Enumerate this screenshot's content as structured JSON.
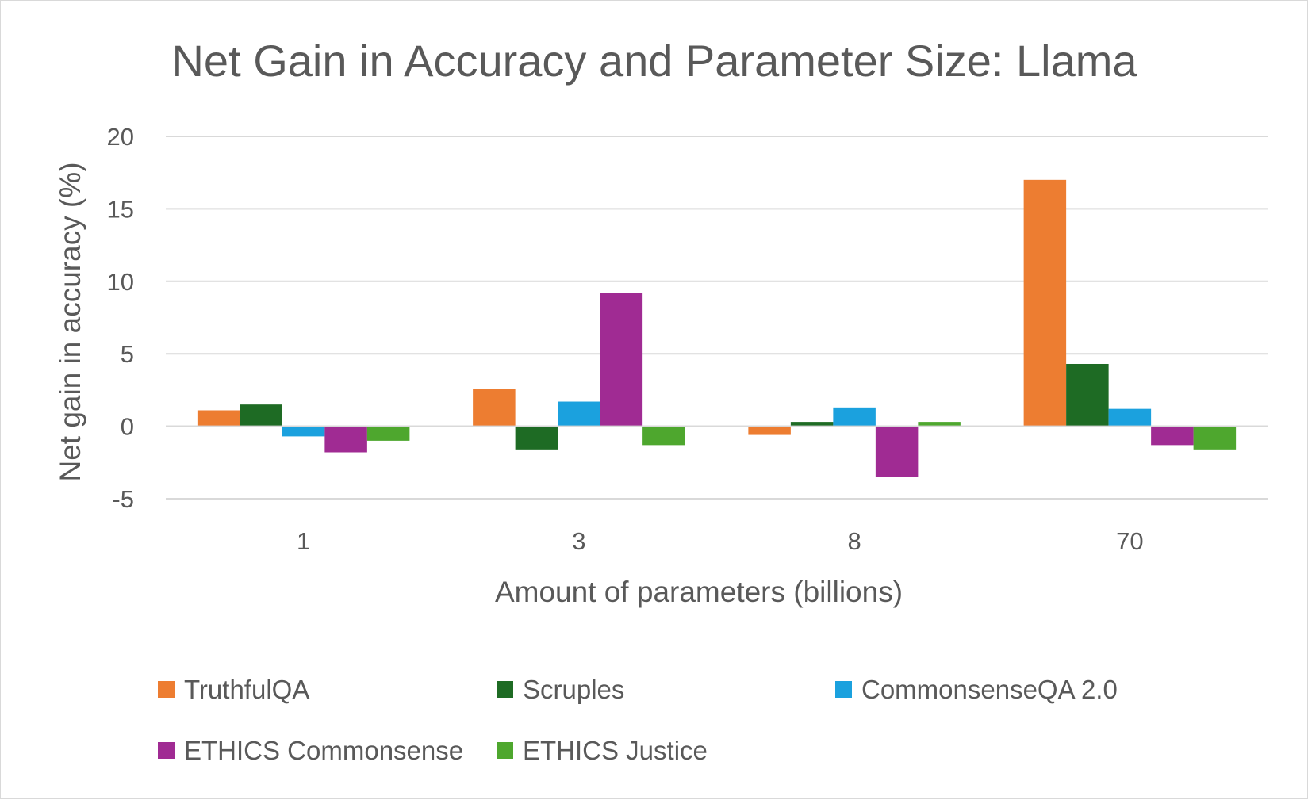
{
  "chart_data": {
    "type": "bar",
    "title": "Net Gain in Accuracy and Parameter Size: Llama",
    "xlabel": "Amount of parameters (billions)",
    "ylabel": "Net gain in accuracy (%)",
    "categories": [
      "1",
      "3",
      "8",
      "70"
    ],
    "yticks": [
      -5,
      0,
      5,
      10,
      15,
      20
    ],
    "ylim": [
      -5,
      20
    ],
    "grid": true,
    "legend_position": "bottom",
    "series": [
      {
        "name": "TruthfulQA",
        "color": "#ED7D31",
        "values": [
          1.1,
          2.6,
          -0.6,
          17.0
        ]
      },
      {
        "name": "Scruples",
        "color": "#1E6B24",
        "values": [
          1.5,
          -1.6,
          0.3,
          4.3
        ]
      },
      {
        "name": "CommonsenseQA 2.0",
        "color": "#1BA1DE",
        "values": [
          -0.7,
          1.7,
          1.3,
          1.2
        ]
      },
      {
        "name": "ETHICS Commonsense",
        "color": "#A02B93",
        "values": [
          -1.8,
          9.2,
          -3.5,
          -1.3
        ]
      },
      {
        "name": "ETHICS Justice",
        "color": "#4EA72E",
        "values": [
          -1.0,
          -1.3,
          0.3,
          -1.6
        ]
      }
    ]
  }
}
